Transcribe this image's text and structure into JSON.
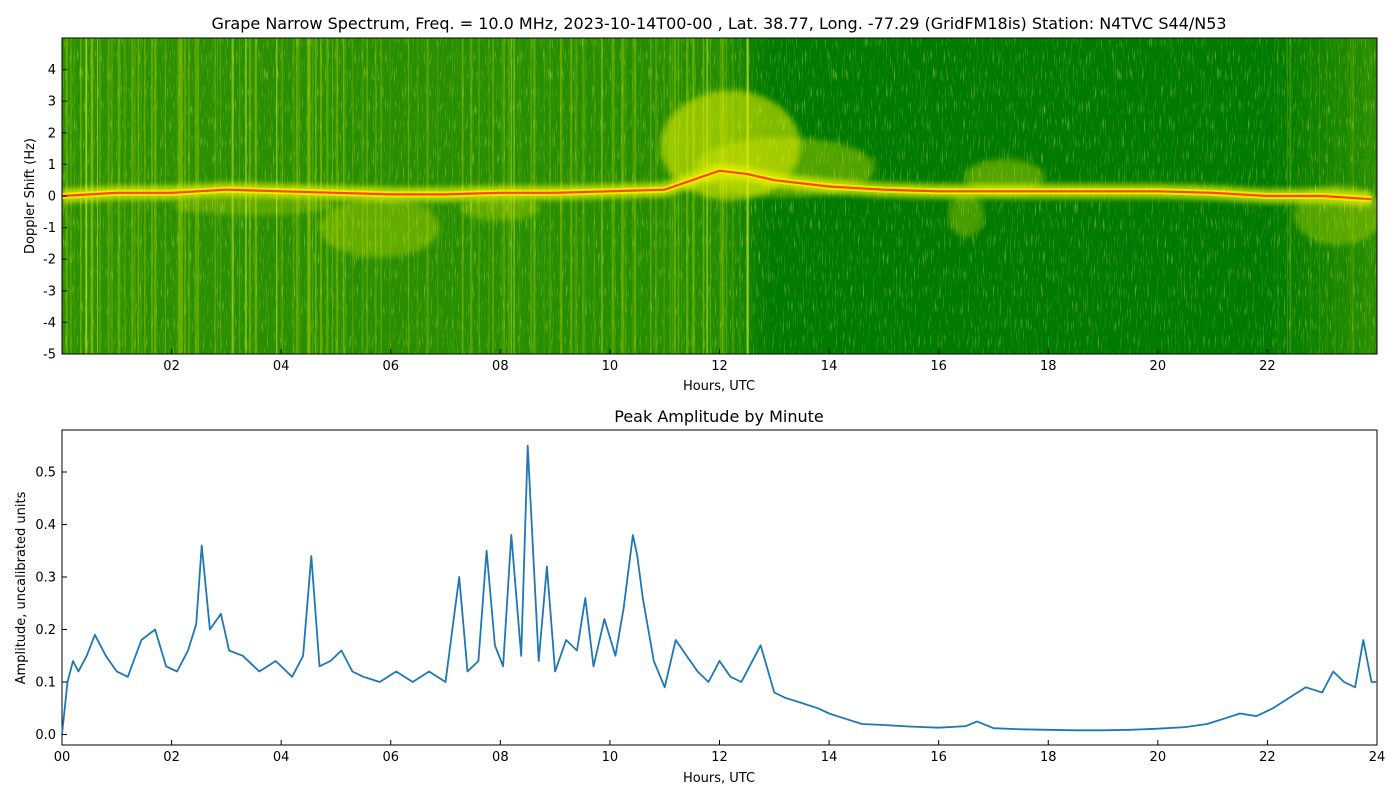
{
  "chart_data": [
    {
      "type": "heatmap",
      "title": "Grape Narrow Spectrum, Freq. = 10.0 MHz, 2023-10-14T00-00 , Lat.  38.77, Long. -77.29 (GridFM18is) Station: N4TVC S44/N53",
      "xlabel": "Hours, UTC",
      "ylabel": "Doppler Shift (Hz)",
      "xlim": [
        0,
        24
      ],
      "ylim": [
        -5,
        5
      ],
      "x_ticks": [
        2,
        4,
        6,
        8,
        10,
        12,
        14,
        16,
        18,
        20,
        22
      ],
      "x_tick_labels": [
        "02",
        "04",
        "06",
        "08",
        "10",
        "12",
        "14",
        "16",
        "18",
        "20",
        "22"
      ],
      "y_ticks": [
        -5,
        -4,
        -3,
        -2,
        -1,
        0,
        1,
        2,
        3,
        4
      ],
      "y_tick_labels": [
        "-5",
        "-4",
        "-3",
        "-2",
        "-1",
        "0",
        "1",
        "2",
        "3",
        "4"
      ],
      "grid": false,
      "colors": {
        "background": "#007a00",
        "mid": "#d4e600",
        "high": "#ff4500"
      },
      "carrier_doppler_hz": {
        "x": [
          0,
          1,
          2,
          3,
          4,
          5,
          6,
          7,
          8,
          9,
          10,
          11,
          11.5,
          12,
          12.5,
          13,
          14,
          15,
          16,
          17,
          18,
          19,
          20,
          21,
          22,
          23,
          23.9
        ],
        "y": [
          0.0,
          0.1,
          0.1,
          0.2,
          0.15,
          0.1,
          0.05,
          0.05,
          0.1,
          0.1,
          0.15,
          0.2,
          0.5,
          0.8,
          0.7,
          0.5,
          0.3,
          0.2,
          0.15,
          0.15,
          0.15,
          0.15,
          0.15,
          0.1,
          0.0,
          0.0,
          -0.1
        ]
      }
    },
    {
      "type": "line",
      "title": "Peak Amplitude by Minute",
      "xlabel": "Hours, UTC",
      "ylabel": "Amplitude, uncalibrated units",
      "xlim": [
        0,
        24
      ],
      "ylim": [
        -0.02,
        0.58
      ],
      "x_ticks": [
        0,
        2,
        4,
        6,
        8,
        10,
        12,
        14,
        16,
        18,
        20,
        22,
        24
      ],
      "x_tick_labels": [
        "00",
        "02",
        "04",
        "06",
        "08",
        "10",
        "12",
        "14",
        "16",
        "18",
        "20",
        "22",
        "24"
      ],
      "y_ticks": [
        0.0,
        0.1,
        0.2,
        0.3,
        0.4,
        0.5
      ],
      "y_tick_labels": [
        "0.0",
        "0.1",
        "0.2",
        "0.3",
        "0.4",
        "0.5"
      ],
      "grid": false,
      "line_color": "#1f77b4",
      "series": [
        {
          "x": [
            0,
            0.1,
            0.2,
            0.3,
            0.45,
            0.6,
            0.8,
            1.0,
            1.2,
            1.45,
            1.7,
            1.9,
            2.1,
            2.3,
            2.45,
            2.55,
            2.7,
            2.9,
            3.05,
            3.3,
            3.6,
            3.9,
            4.2,
            4.4,
            4.55,
            4.7,
            4.9,
            5.1,
            5.3,
            5.5,
            5.8,
            6.1,
            6.4,
            6.7,
            7.0,
            7.25,
            7.4,
            7.6,
            7.75,
            7.9,
            8.05,
            8.2,
            8.38,
            8.5,
            8.7,
            8.85,
            9.0,
            9.2,
            9.4,
            9.55,
            9.7,
            9.9,
            10.1,
            10.25,
            10.42,
            10.5,
            10.6,
            10.8,
            11.0,
            11.2,
            11.4,
            11.6,
            11.8,
            12.0,
            12.2,
            12.4,
            12.75,
            13.0,
            13.2,
            13.5,
            13.8,
            14.0,
            14.3,
            14.6,
            15.0,
            15.5,
            16.0,
            16.5,
            16.7,
            17.0,
            17.5,
            18.0,
            18.5,
            19.0,
            19.5,
            20.0,
            20.5,
            20.9,
            21.2,
            21.5,
            21.8,
            22.1,
            22.4,
            22.7,
            23.0,
            23.2,
            23.4,
            23.6,
            23.75,
            23.9,
            24.0
          ],
          "y": [
            0.0,
            0.1,
            0.14,
            0.12,
            0.15,
            0.19,
            0.15,
            0.12,
            0.11,
            0.18,
            0.2,
            0.13,
            0.12,
            0.16,
            0.21,
            0.36,
            0.2,
            0.23,
            0.16,
            0.15,
            0.12,
            0.14,
            0.11,
            0.15,
            0.34,
            0.13,
            0.14,
            0.16,
            0.12,
            0.11,
            0.1,
            0.12,
            0.1,
            0.12,
            0.1,
            0.3,
            0.12,
            0.14,
            0.35,
            0.17,
            0.13,
            0.38,
            0.15,
            0.55,
            0.14,
            0.32,
            0.12,
            0.18,
            0.16,
            0.26,
            0.13,
            0.22,
            0.15,
            0.24,
            0.38,
            0.34,
            0.26,
            0.14,
            0.09,
            0.18,
            0.15,
            0.12,
            0.1,
            0.14,
            0.11,
            0.1,
            0.17,
            0.08,
            0.07,
            0.06,
            0.05,
            0.04,
            0.03,
            0.02,
            0.018,
            0.015,
            0.013,
            0.016,
            0.025,
            0.012,
            0.01,
            0.009,
            0.008,
            0.008,
            0.009,
            0.011,
            0.014,
            0.02,
            0.03,
            0.04,
            0.035,
            0.05,
            0.07,
            0.09,
            0.08,
            0.12,
            0.1,
            0.09,
            0.18,
            0.1,
            0.1
          ]
        }
      ]
    }
  ]
}
